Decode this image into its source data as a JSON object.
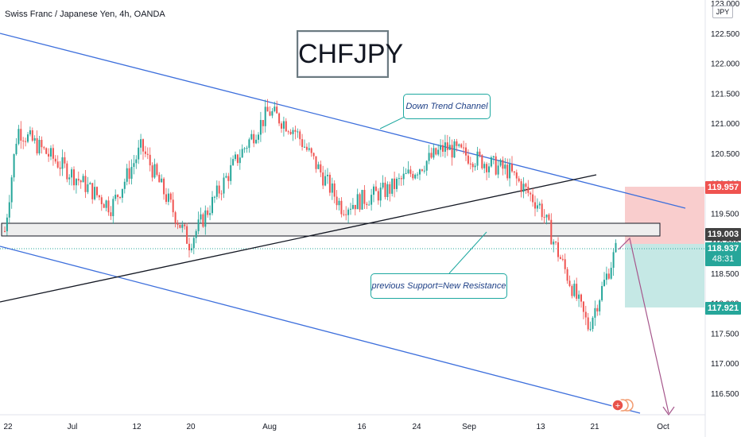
{
  "header": {
    "symbol_title": "Swiss Franc / Japanese Yen, 4h, OANDA",
    "currency": "JPY",
    "chart_name": "CHFJPY"
  },
  "annotations": {
    "down_trend": "Down Trend Channel",
    "support": "previous Support=New Resistance"
  },
  "price_tags": {
    "target_upper": "119.957",
    "resistance": "119.003",
    "current": "118.937",
    "countdown": "48:31",
    "target_lower": "117.921"
  },
  "colors": {
    "bull": "#26a69a",
    "bear": "#ef5350",
    "channel": "#3d6fdc",
    "trendline": "#131722",
    "stop_zone": "#f8c8c8",
    "target_zone": "#bfe6e2",
    "resistance_tag": "#424242",
    "current_tag": "#26a69a"
  },
  "chart_data": {
    "type": "candlestick",
    "y_axis": {
      "min": 116.2,
      "max": 123.0,
      "ticks": [
        "116.500",
        "117.000",
        "117.500",
        "118.000",
        "118.500",
        "119.000",
        "119.500",
        "120.000",
        "120.500",
        "121.000",
        "121.500",
        "122.000",
        "122.500",
        "123.000"
      ]
    },
    "x_axis": {
      "labels": [
        "22",
        "Jul",
        "12",
        "20",
        "Aug",
        "16",
        "24",
        "Sep",
        "13",
        "21",
        "Oct"
      ]
    },
    "price_path": [
      {
        "x": "Jun 22",
        "close": 119.2
      },
      {
        "x": "Jun 25",
        "close": 120.9
      },
      {
        "x": "Jul 1",
        "close": 120.1
      },
      {
        "x": "Jul 7",
        "close": 119.6
      },
      {
        "x": "Jul 12",
        "close": 120.6
      },
      {
        "x": "Jul 20",
        "close": 119.0
      },
      {
        "x": "Jul 26",
        "close": 120.4
      },
      {
        "x": "Aug 1",
        "close": 121.2
      },
      {
        "x": "Aug 6",
        "close": 120.9
      },
      {
        "x": "Aug 13",
        "close": 119.6
      },
      {
        "x": "Aug 20",
        "close": 119.9
      },
      {
        "x": "Aug 28",
        "close": 120.6
      },
      {
        "x": "Sep 6",
        "close": 120.2
      },
      {
        "x": "Sep 12",
        "close": 119.6
      },
      {
        "x": "Sep 15",
        "close": 118.9
      },
      {
        "x": "Sep 20",
        "close": 117.6
      },
      {
        "x": "Sep 23",
        "close": 118.9
      }
    ],
    "levels": {
      "resistance_zone": [
        119.0,
        119.17
      ],
      "stop": 119.957,
      "entry": 119.003,
      "target": 117.921
    },
    "grid": false
  }
}
